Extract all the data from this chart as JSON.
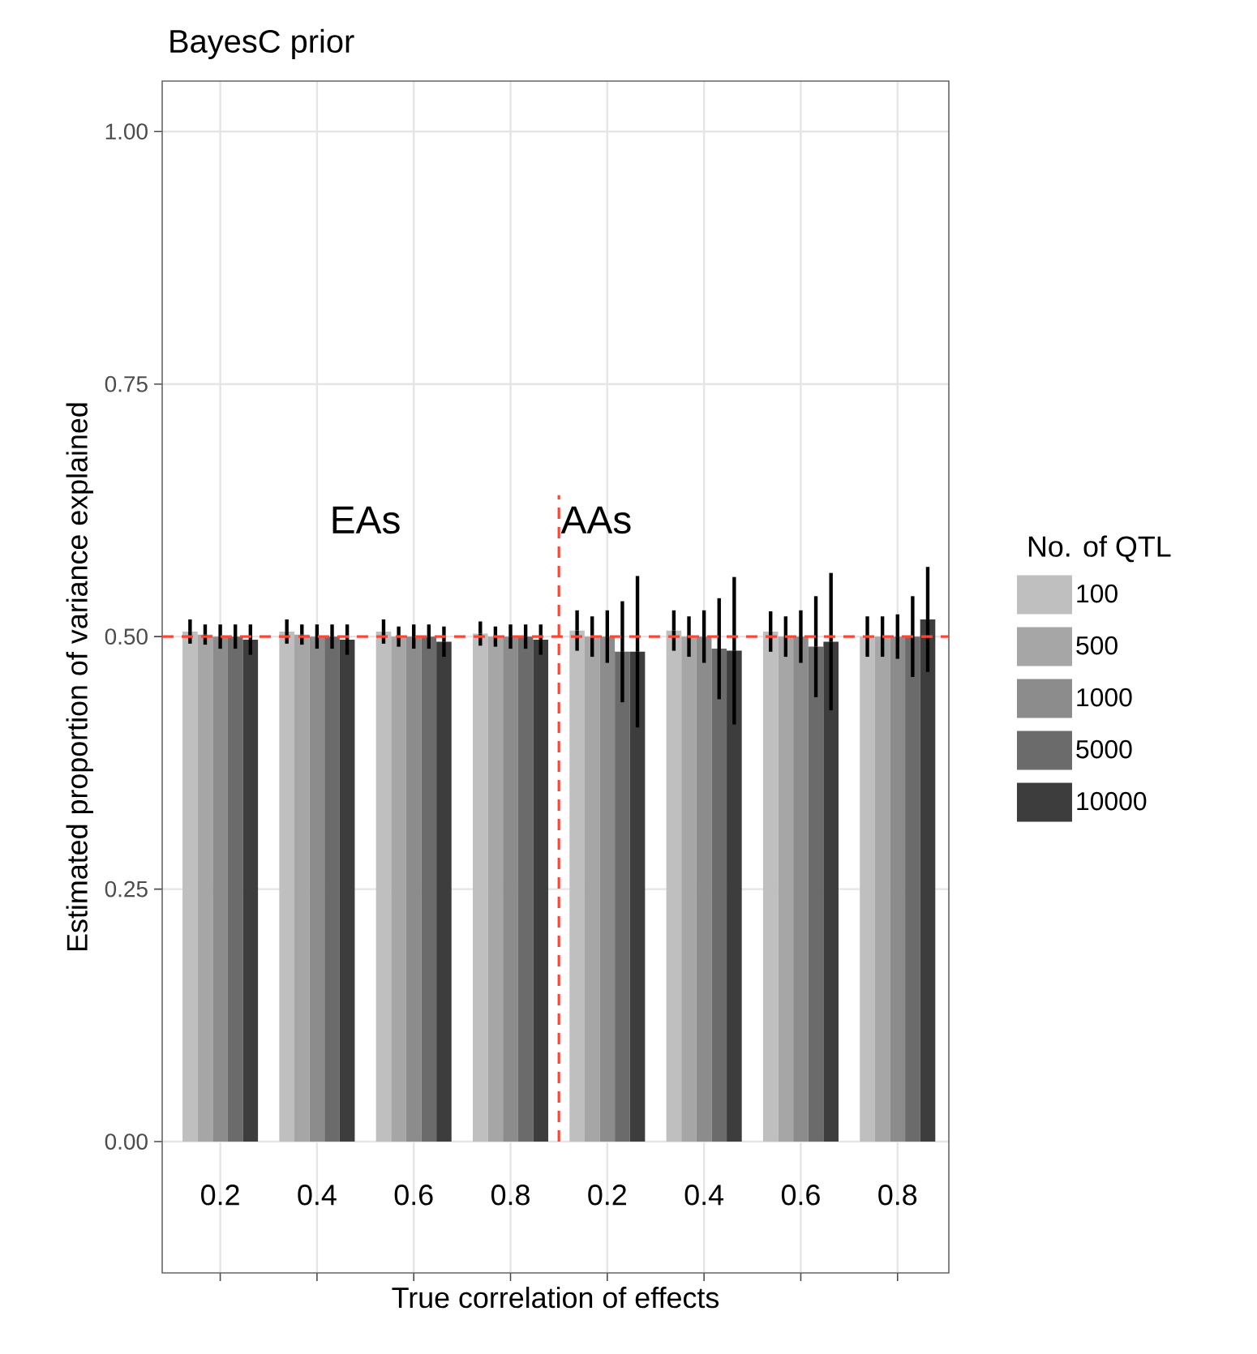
{
  "chart_data": {
    "type": "bar",
    "title": "BayesC prior",
    "xlabel": "True correlation of effects",
    "ylabel": "Estimated proportion of variance explained",
    "legend_title": "No. of QTL",
    "categories": [
      "0.2",
      "0.4",
      "0.6",
      "0.8",
      "0.2",
      "0.4",
      "0.6",
      "0.8"
    ],
    "series": [
      {
        "name": "100",
        "color": "#bfbfbf",
        "values": [
          0.505,
          0.505,
          0.505,
          0.503,
          0.506,
          0.506,
          0.505,
          0.5
        ],
        "errors": [
          0.012,
          0.012,
          0.012,
          0.012,
          0.02,
          0.02,
          0.02,
          0.02
        ]
      },
      {
        "name": "500",
        "color": "#a6a6a6",
        "values": [
          0.502,
          0.502,
          0.5,
          0.5,
          0.5,
          0.5,
          0.5,
          0.5
        ],
        "errors": [
          0.01,
          0.01,
          0.01,
          0.01,
          0.02,
          0.02,
          0.02,
          0.02
        ]
      },
      {
        "name": "1000",
        "color": "#8c8c8c",
        "values": [
          0.5,
          0.5,
          0.5,
          0.5,
          0.5,
          0.5,
          0.5,
          0.5
        ],
        "errors": [
          0.012,
          0.012,
          0.012,
          0.012,
          0.026,
          0.026,
          0.026,
          0.022
        ]
      },
      {
        "name": "5000",
        "color": "#6b6b6b",
        "values": [
          0.5,
          0.5,
          0.5,
          0.5,
          0.485,
          0.488,
          0.49,
          0.5
        ],
        "errors": [
          0.012,
          0.012,
          0.012,
          0.012,
          0.05,
          0.05,
          0.05,
          0.04
        ]
      },
      {
        "name": "10000",
        "color": "#3d3d3d",
        "values": [
          0.497,
          0.497,
          0.495,
          0.497,
          0.485,
          0.486,
          0.495,
          0.517
        ],
        "errors": [
          0.015,
          0.015,
          0.015,
          0.015,
          0.075,
          0.073,
          0.068,
          0.052
        ]
      }
    ],
    "ylim": [
      -0.13,
      1.05
    ],
    "yticks": [
      {
        "value": 0,
        "label": "0.00"
      },
      {
        "value": 0.25,
        "label": "0.25"
      },
      {
        "value": 0.5,
        "label": "0.50"
      },
      {
        "value": 0.75,
        "label": "0.75"
      },
      {
        "value": 1,
        "label": "1.00"
      }
    ],
    "ref_lines": [
      {
        "axis": "y",
        "value": 0.5,
        "color": "#ff4433",
        "line_style": "dashed"
      }
    ],
    "annotations": [
      "EAs",
      "AAs"
    ],
    "grid": true,
    "legend": "right"
  }
}
